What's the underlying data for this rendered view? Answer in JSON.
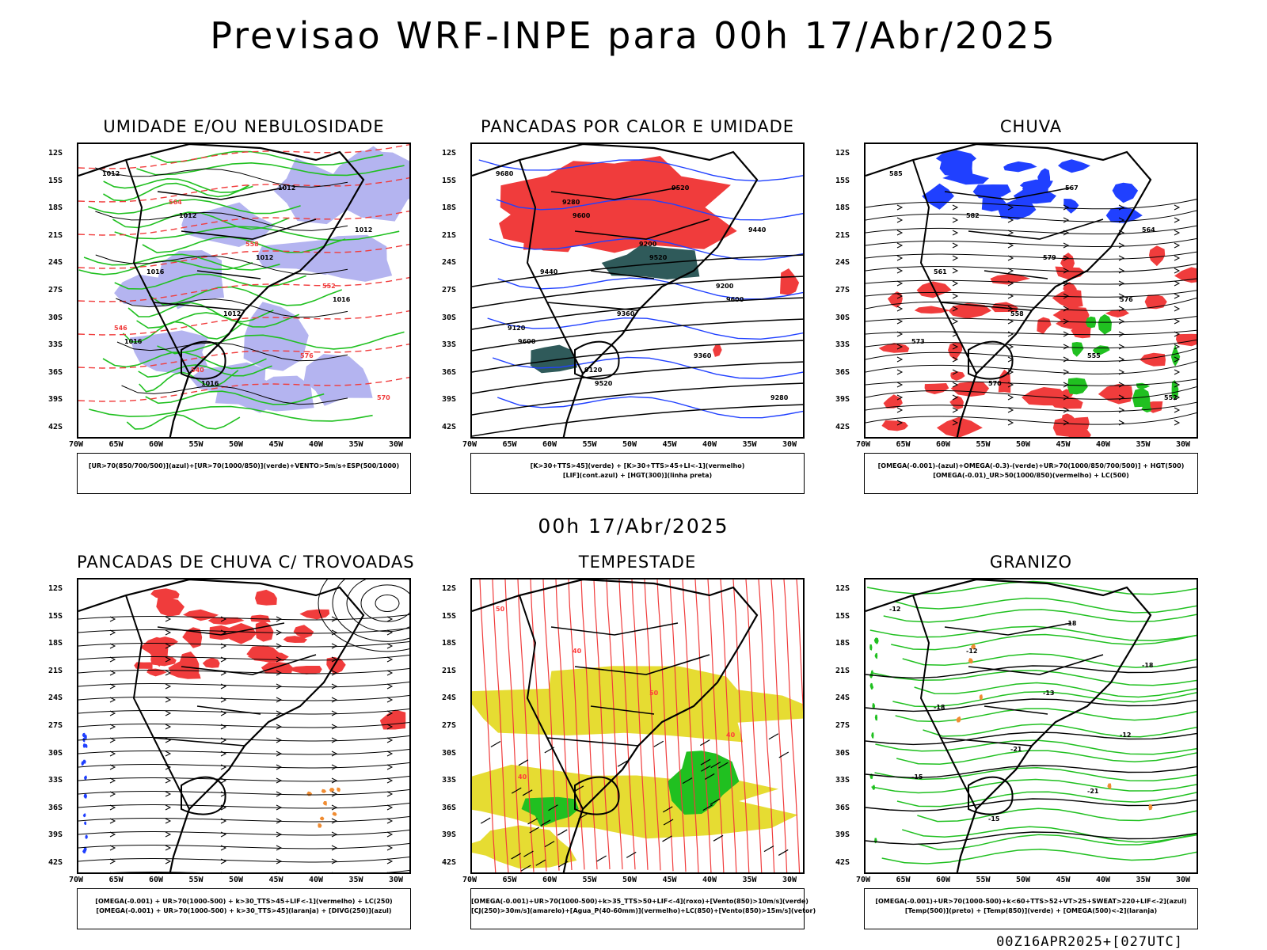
{
  "title": "Previsao WRF-INPE  para 00h 17/Abr/2025",
  "mid_title": "00h 17/Abr/2025",
  "footer": "00Z16APR2025+[027UTC]",
  "lat_labels": [
    "12S",
    "15S",
    "18S",
    "21S",
    "24S",
    "27S",
    "30S",
    "33S",
    "36S",
    "39S",
    "42S"
  ],
  "lon_labels": [
    "70W",
    "65W",
    "60W",
    "55W",
    "50W",
    "45W",
    "40W",
    "35W",
    "30W"
  ],
  "colors": {
    "red": "#f03c3c",
    "green": "#20c020",
    "blue": "#2040ff",
    "lavender": "#b4b4f0",
    "teal": "#2f5a5a",
    "yellow": "#e6dc32",
    "orange": "#f08c32",
    "black": "#000000"
  },
  "panels": [
    {
      "id": "umidade",
      "title": "UMIDADE E/OU NEBULOSIDADE",
      "legend": [
        "[UR>70(850/700/500)](azul)+[UR>70(1000/850)](verde)+VENTO>5m/s+ESP(500/1000)"
      ],
      "contour_labels": [
        "1012",
        "1012",
        "1012",
        "1016",
        "1016",
        "1016",
        "1012",
        "1012",
        "1016",
        "1012",
        "576",
        "570",
        "564",
        "558",
        "552",
        "546",
        "540"
      ]
    },
    {
      "id": "pancadas",
      "title": "PANCADAS POR CALOR E UMIDADE",
      "legend": [
        "[K>30+TTS>45](verde) + [K>30+TTS>45+LI<-1](vermelho)",
        "[LIF](cont.azul) + [HGT(300)](linha preta)"
      ],
      "contour_labels": [
        "9680",
        "9600",
        "9520",
        "9600",
        "9600",
        "9520",
        "9520",
        "9440",
        "9440",
        "9360",
        "9360",
        "9280",
        "9280",
        "9200",
        "9200",
        "9120",
        "9120"
      ]
    },
    {
      "id": "chuva",
      "title": "CHUVA",
      "legend": [
        "[OMEGA(-0.001)-(azul)+OMEGA(-0.3)-(verde)+UR>70(1000/850/700/500)] + HGT(500)",
        "[OMEGA(-0.01)_UR>50(1000/850)(vermelho) + LC(500)"
      ],
      "contour_labels": [
        "585",
        "582",
        "579",
        "576",
        "573",
        "570",
        "567",
        "564",
        "561",
        "558",
        "555",
        "552"
      ]
    },
    {
      "id": "trovoadas",
      "title": "PANCADAS DE CHUVA C/ TROVOADAS",
      "legend": [
        "[OMEGA(-0.001) + UR>70(1000-500) + k>30_TTS>45+LIF<-1](vermelho) + LC(250)",
        "[OMEGA(-0.001) + UR>70(1000-500) + k>30_TTS>45](laranja) + [DIVG(250)](azul)"
      ],
      "contour_labels": []
    },
    {
      "id": "tempestade",
      "title": "TEMPESTADE",
      "legend": [
        "[OMEGA(-0.001)+UR>70(1000-500)+k>35_TTS>50+LIF<-4](roxo)+[Vento(850)>10m/s](verde)",
        "[CJ(250)>30m/s](amarelo)+[Agua_P(40-60mm)](vermelho)+LC(850)+[Vento(850)>15m/s](vetor)"
      ],
      "contour_labels": [
        "50",
        "40",
        "50",
        "40",
        "40"
      ]
    },
    {
      "id": "granizo",
      "title": "GRANIZO",
      "legend": [
        "[OMEGA(-0.001)+UR>70(1000-500)+k<60+TTS>52+VT>25+SWEAT>220+LIF<-2](azul)",
        "[Temp(500)](preto) + [Temp(850)](verde) + [OMEGA(500)<-2](laranja)"
      ],
      "contour_labels": [
        "-12",
        "-12",
        "-13",
        "-12",
        "-15",
        "-15",
        "-18",
        "-18",
        "-18",
        "-21",
        "-21"
      ]
    }
  ]
}
